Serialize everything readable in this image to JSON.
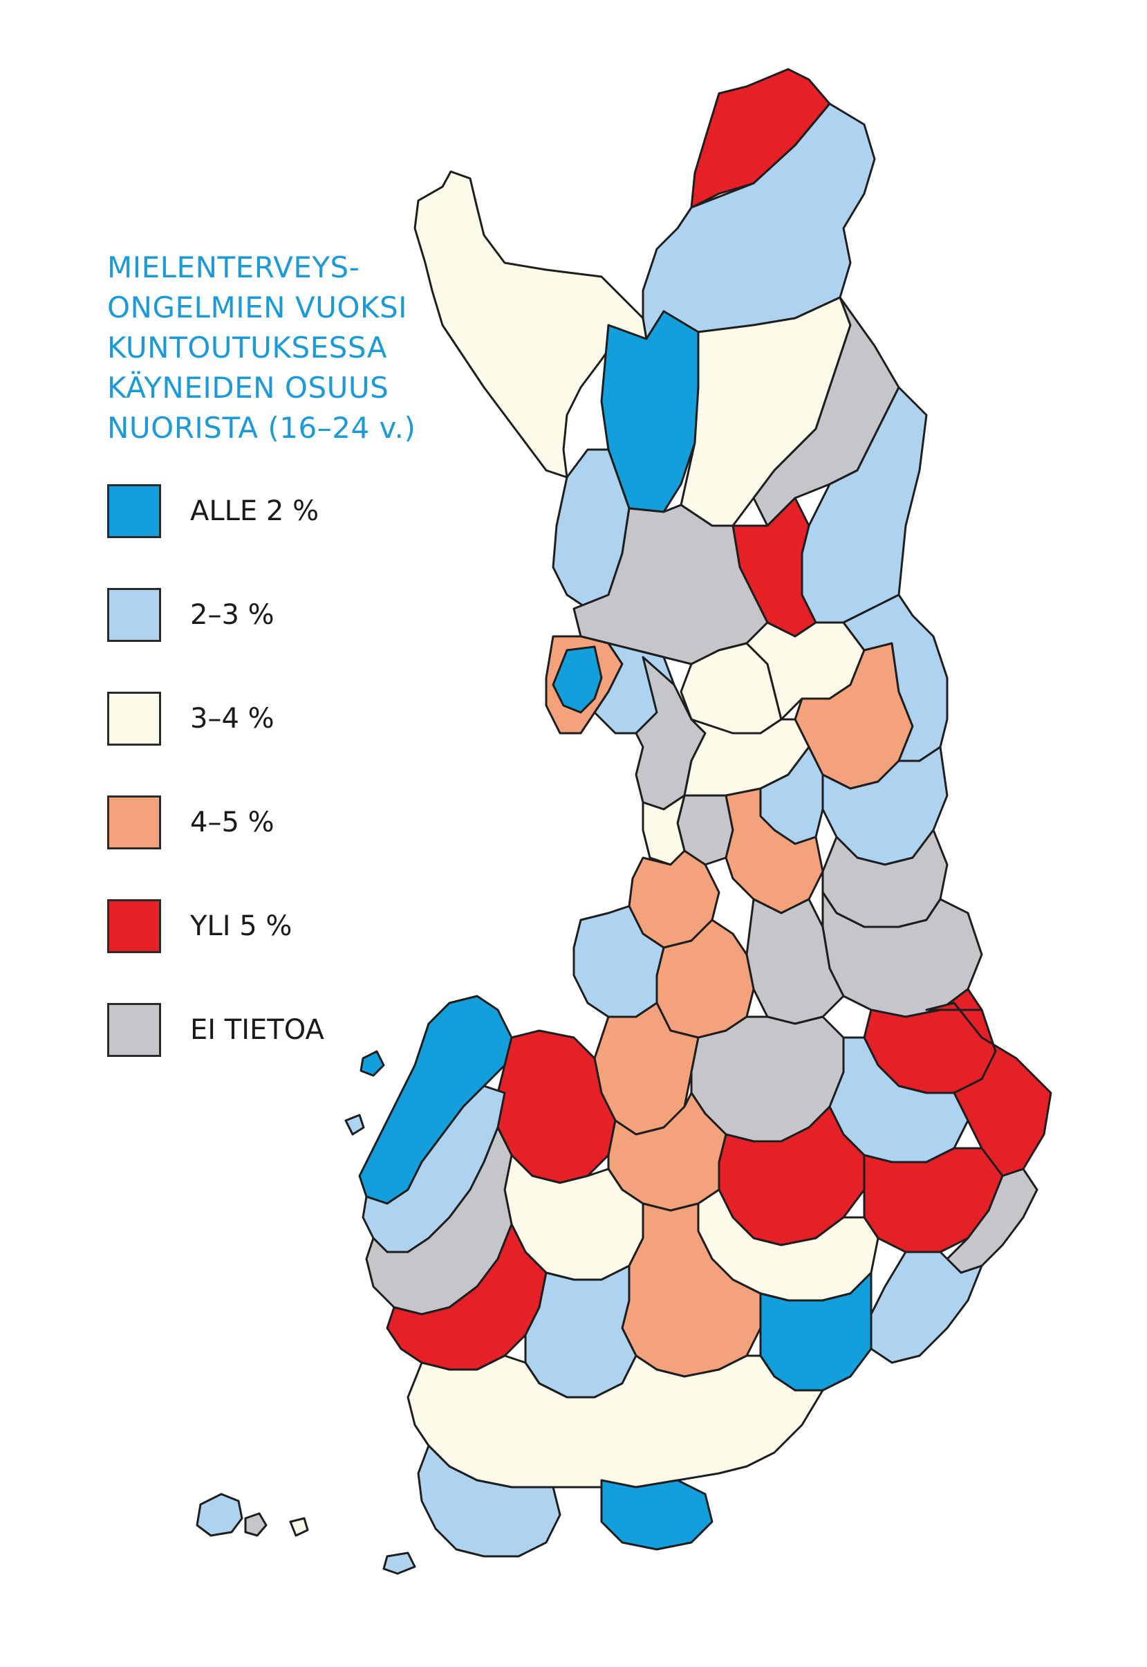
{
  "title_lines": [
    "MIELENTERVEYS-",
    "ONGELMIEN VUOKSI",
    "KUNTOUTUKSESSA",
    "KÄYNEIDEN OSUUS",
    "NUORISTA (16–24 v.)"
  ],
  "legend": [
    {
      "label": "ALLE 2 %",
      "color": "#139fdb"
    },
    {
      "label": "2–3 %",
      "color": "#aed3f1"
    },
    {
      "label": "3–4 %",
      "color": "#fdfbe9"
    },
    {
      "label": "4–5 %",
      "color": "#f3a27c"
    },
    {
      "label": "YLI 5 %",
      "color": "#e52127"
    },
    {
      "label": "EI TIETOA",
      "color": "#c4c6c9"
    }
  ],
  "region_categories": {
    "enontekio": 2,
    "utsjoki": 4,
    "inari": 1,
    "kittila": 0,
    "sodankyla": 2,
    "savukoski": 5,
    "salla": 1,
    "posio": 4,
    "kolari": 1,
    "pello": 5,
    "rovaniemi": 3,
    "tornio_area": 0,
    "kemi": 1,
    "ranua": 2,
    "pudasjarvi": 2,
    "taivalkoski": 3,
    "kuusamo": 1,
    "suomussalmi": 1,
    "oulu_north": 5,
    "oulu_area": 2,
    "hailuoto": 5,
    "raahe_area": 2,
    "kajaani": 3,
    "kuhmo": 1,
    "sotkamo": 5,
    "lieksa": 5,
    "ylivieska": 3,
    "keski_pohjanmaa": 3,
    "vaasa_coast": 0,
    "seinajoki": 1,
    "keuruu": 3,
    "jyvaskyla": 5,
    "kuopio": 1,
    "joensuu": 4,
    "pielisjarvi": 5,
    "kitee": 4,
    "savonlinna": 4,
    "mikkeli": 4,
    "pieksamaki": 5,
    "lappeenranta": 1,
    "kouvola": 3,
    "lahti": 2,
    "tampere": 4,
    "hameenlinna": 2,
    "pori": 1,
    "rauma": 5,
    "turku": 4,
    "salo": 1,
    "helsinki": 0,
    "espoo": 2,
    "porvoo": 3,
    "kotka": 0,
    "hanko": 1,
    "aland": 1,
    "ahvenanmaa_small": 5
  }
}
